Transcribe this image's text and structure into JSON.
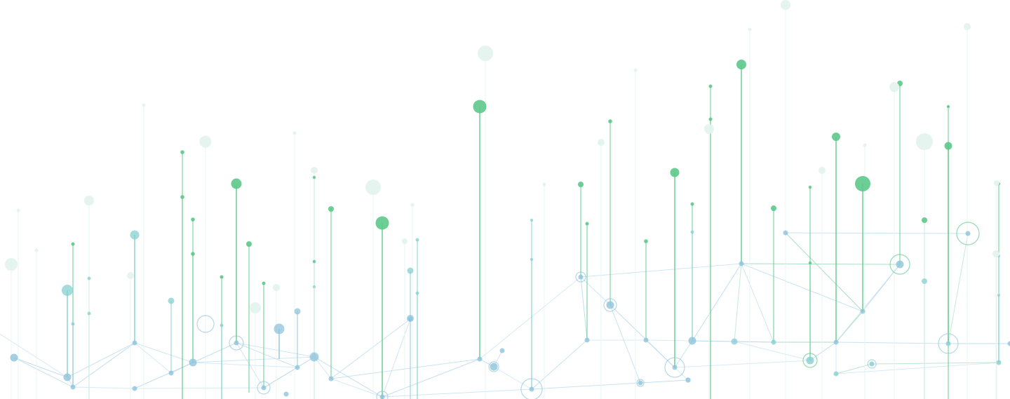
{
  "page": {
    "background": "#ffffff",
    "text": ""
  },
  "palette": {
    "green": "#5cc98a",
    "teal": "#86cfd0",
    "blue": "#8fc3dc",
    "faint": "#e4f3ee",
    "line_blue": "#b7d9ec",
    "line_green": "#9ad8b6"
  },
  "illustration": {
    "name": "network-graph-background",
    "description_visible": false
  }
}
